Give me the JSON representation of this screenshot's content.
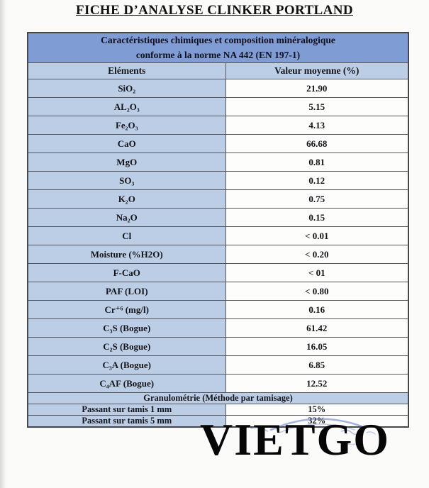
{
  "page": {
    "title": "FICHE D’ANALYSE CLINKER PORTLAND",
    "watermark": "VIETGO"
  },
  "table": {
    "header_line1": "Caractéristiques chimiques et composition minéralogique",
    "header_line2": "conforme à la norme NA 442 (EN 197-1)",
    "columns": [
      "Eléments",
      "Valeur moyenne (%)"
    ],
    "rows": [
      {
        "element": "SiO₂",
        "value": "21.90"
      },
      {
        "element": "AL₂O₃",
        "value": "5.15"
      },
      {
        "element": "Fe₂O₃",
        "value": "4.13"
      },
      {
        "element": "CaO",
        "value": "66.68"
      },
      {
        "element": "MgO",
        "value": "0.81"
      },
      {
        "element": "SO₃",
        "value": "0.12"
      },
      {
        "element": "K₂O",
        "value": "0.75"
      },
      {
        "element": "Na₂O",
        "value": "0.15"
      },
      {
        "element": "Cl",
        "value": "< 0.01"
      },
      {
        "element": "Moisture (%H2O)",
        "value": "< 0.20"
      },
      {
        "element": "F-CaO",
        "value": "< 01"
      },
      {
        "element": "PAF (LOI)",
        "value": "< 0.80"
      },
      {
        "element": "Cr⁺⁶ (mg/l)",
        "value": "0.16"
      },
      {
        "element": "C₃S (Bogue)",
        "value": "61.42"
      },
      {
        "element": "C₂S (Bogue)",
        "value": "16.05"
      },
      {
        "element": "C₃A (Bogue)",
        "value": "6.85"
      },
      {
        "element": "C₄AF (Bogue)",
        "value": "12.52"
      }
    ],
    "section2_header": "Granulométrie (Méthode par tamisage)",
    "section2_rows": [
      {
        "element": "Passant sur tamis 1 mm",
        "value": "15%"
      },
      {
        "element": "Passant sur tamis 5 mm",
        "value": "32%"
      }
    ]
  },
  "colors": {
    "band_blue": "#7f9dd4",
    "cell_blue": "#bccee6",
    "border_gray": "#56565c",
    "stamp_blue": "#5a76c0",
    "watermark_black": "#060607"
  }
}
